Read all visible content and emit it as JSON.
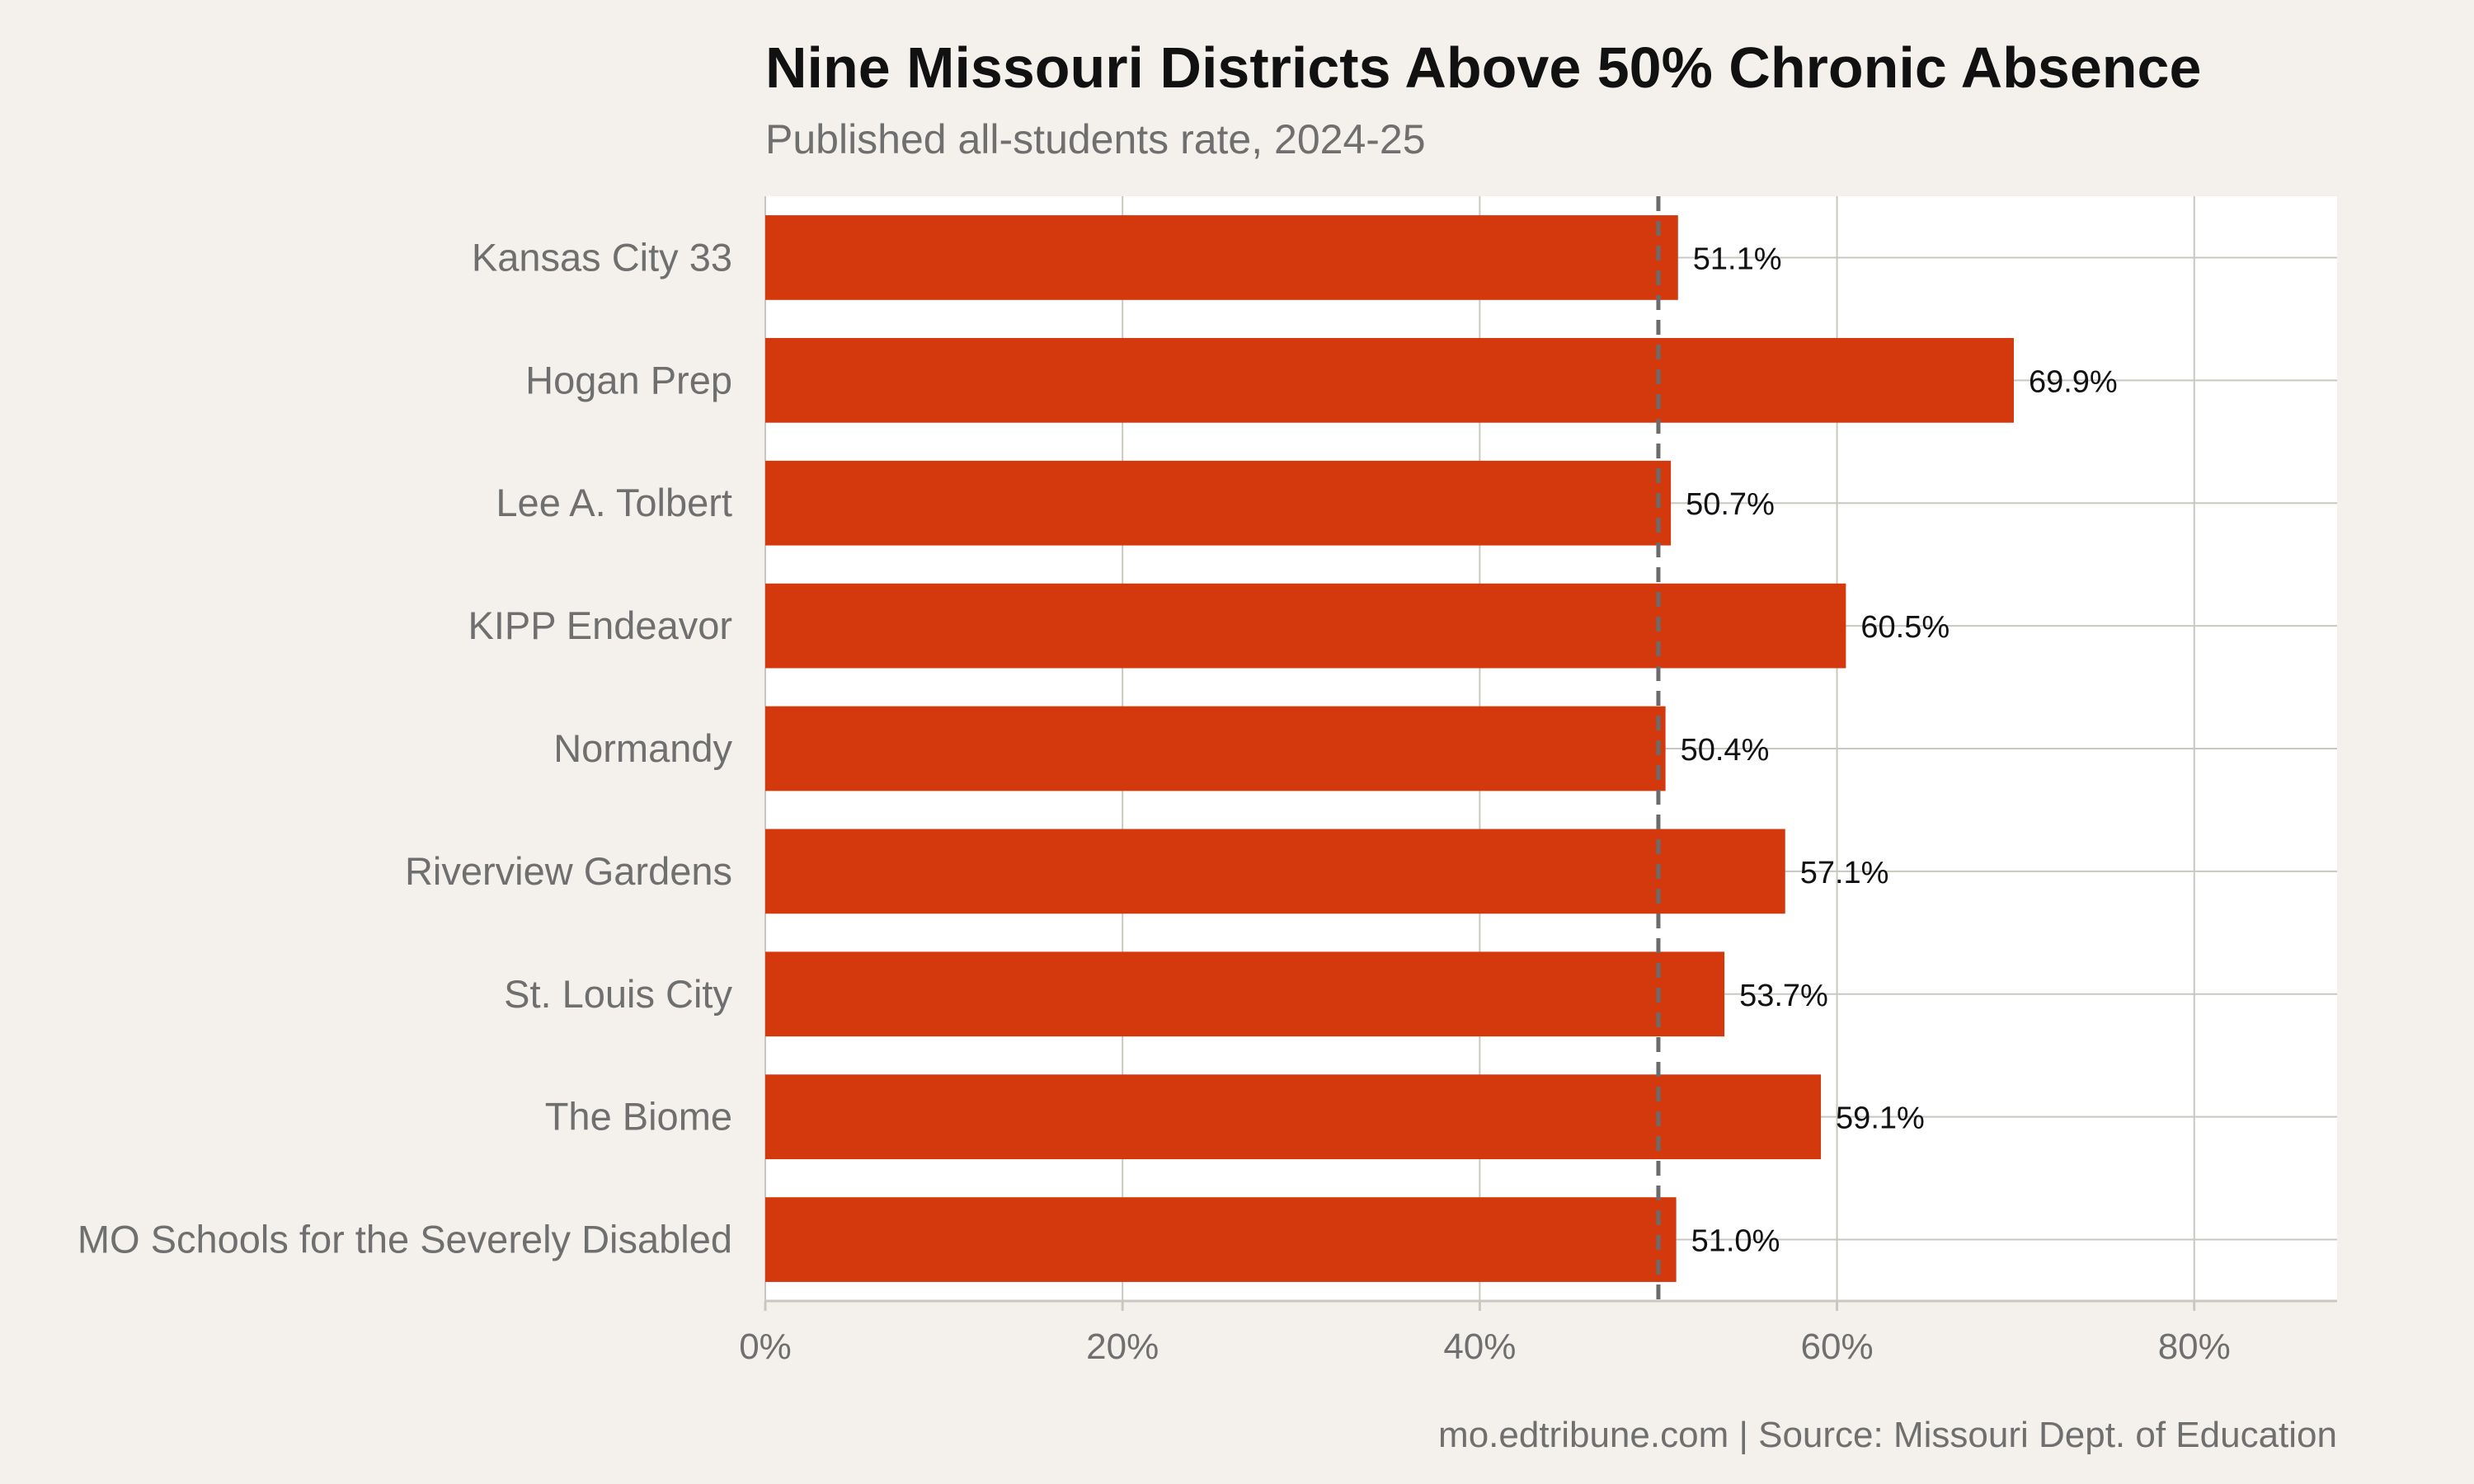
{
  "title": "Nine Missouri Districts Above 50% Chronic Absence",
  "subtitle": "Published all-students rate, 2024-25",
  "footer": "mo.edtribune.com | Source: Missouri Dept. of Education",
  "colors": {
    "bar": "#d4380d",
    "panel": "#ffffff",
    "background": "#f4f1ec",
    "grid": "#c8c8c0",
    "reference_line": "#6b6b6b",
    "label_text": "#6f6f6f",
    "value_text": "#111111"
  },
  "chart_data": {
    "type": "bar",
    "orientation": "horizontal",
    "categories": [
      "Kansas City 33",
      "Hogan Prep",
      "Lee A. Tolbert",
      "KIPP Endeavor",
      "Normandy",
      "Riverview Gardens",
      "St. Louis City",
      "The Biome",
      "MO Schools for the Severely Disabled"
    ],
    "values": [
      51.1,
      69.9,
      50.7,
      60.5,
      50.4,
      57.1,
      53.7,
      59.1,
      51.0
    ],
    "value_labels": [
      "51.1%",
      "69.9%",
      "50.7%",
      "60.5%",
      "50.4%",
      "57.1%",
      "53.7%",
      "59.1%",
      "51.0%"
    ],
    "reference_line": 50,
    "xlim": [
      0,
      88
    ],
    "x_ticks": [
      0,
      20,
      40,
      60,
      80
    ],
    "x_tick_labels": [
      "0%",
      "20%",
      "40%",
      "60%",
      "80%"
    ],
    "grid": true
  }
}
